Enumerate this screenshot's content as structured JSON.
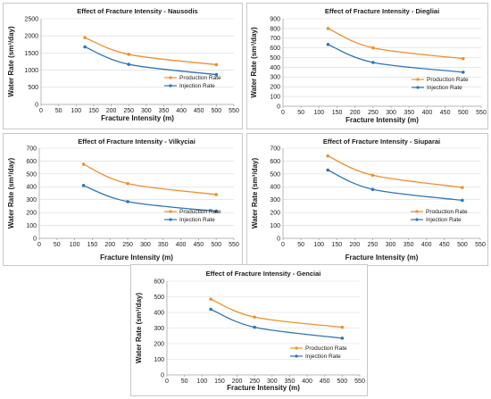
{
  "colors": {
    "production": "#F28E2B",
    "injection": "#2E75B6"
  },
  "charts": [
    {
      "title": "Effect of Fracture Intensity - Nausodis",
      "xlabel": "Fracture Intensity (m)",
      "ylabel": "Water Rate (sm³/day)",
      "type": "line",
      "x": [
        125,
        250,
        500
      ],
      "xlim": [
        0,
        550
      ],
      "xticks": [
        0,
        50,
        100,
        150,
        200,
        250,
        300,
        350,
        400,
        450,
        500,
        550
      ],
      "ylim": [
        0,
        2500
      ],
      "yticks": [
        0,
        500,
        1000,
        1500,
        2000,
        2500
      ],
      "series": [
        {
          "name": "Production Rate",
          "values": [
            1950,
            1460,
            1160
          ]
        },
        {
          "name": "Injection Rate",
          "values": [
            1680,
            1170,
            870
          ]
        }
      ],
      "legend": "right"
    },
    {
      "title": "Effect of Fracture Intensity - Diegliai",
      "xlabel": "Fracture Intensity (m)",
      "ylabel": "Water Rate (sm³/day)",
      "type": "line",
      "x": [
        125,
        250,
        500
      ],
      "xlim": [
        0,
        550
      ],
      "xticks": [
        0,
        50,
        100,
        150,
        200,
        250,
        300,
        350,
        400,
        450,
        500,
        550
      ],
      "ylim": [
        0,
        900
      ],
      "yticks": [
        0,
        100,
        200,
        300,
        400,
        500,
        600,
        700,
        800,
        900
      ],
      "series": [
        {
          "name": "Production Rate",
          "values": [
            800,
            600,
            490
          ]
        },
        {
          "name": "Injection Rate",
          "values": [
            635,
            450,
            350
          ]
        }
      ],
      "legend": "right"
    },
    {
      "title": "Effect of Fracture Intensity - Vilkyciai",
      "xlabel": "Fracture Intensity (m)",
      "ylabel": "Water Rate (sm³/day)",
      "type": "line",
      "x": [
        125,
        250,
        500
      ],
      "xlim": [
        0,
        550
      ],
      "xticks": [
        0,
        50,
        100,
        150,
        200,
        250,
        300,
        350,
        400,
        450,
        500,
        550
      ],
      "ylim": [
        0,
        700
      ],
      "yticks": [
        0,
        100,
        200,
        300,
        400,
        500,
        600,
        700
      ],
      "series": [
        {
          "name": "Production Rate",
          "values": [
            575,
            425,
            340
          ]
        },
        {
          "name": "Injection Rate",
          "values": [
            410,
            285,
            210
          ]
        }
      ],
      "legend": "right"
    },
    {
      "title": "Effect of Fracture Intensity - Siuparai",
      "xlabel": "Fracture Intensity (m)",
      "ylabel": "Water Rate (sm³/day)",
      "type": "line",
      "x": [
        125,
        250,
        500
      ],
      "xlim": [
        0,
        550
      ],
      "xticks": [
        0,
        50,
        100,
        150,
        200,
        250,
        300,
        350,
        400,
        450,
        500,
        550
      ],
      "ylim": [
        0,
        700
      ],
      "yticks": [
        0,
        100,
        200,
        300,
        400,
        500,
        600,
        700
      ],
      "series": [
        {
          "name": "Production Rate",
          "values": [
            640,
            490,
            395
          ]
        },
        {
          "name": "Injection Rate",
          "values": [
            530,
            380,
            295
          ]
        }
      ],
      "legend": "right"
    },
    {
      "title": "Effect of Fracture Intensity - Genciai",
      "xlabel": "Fracture Intensity (m)",
      "ylabel": "Water Rate (sm³/day)",
      "type": "line",
      "x": [
        125,
        250,
        500
      ],
      "xlim": [
        0,
        550
      ],
      "xticks": [
        0,
        50,
        100,
        150,
        200,
        250,
        300,
        350,
        400,
        450,
        500,
        550
      ],
      "ylim": [
        0,
        600
      ],
      "yticks": [
        0,
        100,
        200,
        300,
        400,
        500,
        600
      ],
      "series": [
        {
          "name": "Production Rate",
          "values": [
            485,
            370,
            305
          ]
        },
        {
          "name": "Injection Rate",
          "values": [
            420,
            305,
            235
          ]
        }
      ],
      "legend": "right"
    }
  ]
}
